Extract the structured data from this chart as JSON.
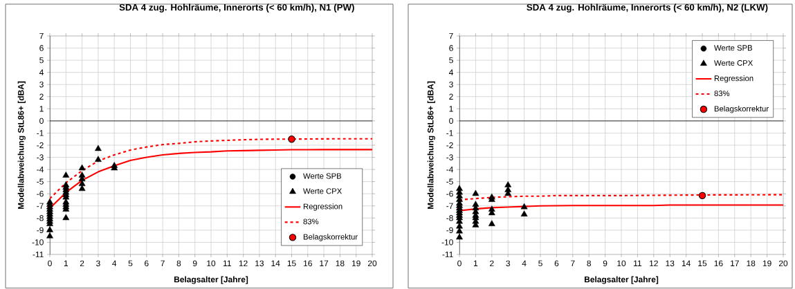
{
  "chart_data": [
    {
      "type": "scatter",
      "title": "SDA 4 zug. Hohlräume, Innerorts (< 60 km/h), N1 (PW)",
      "xlabel": "Belagsalter [Jahre]",
      "ylabel": "Modellabweichung StL86+ [dBA]",
      "xlim": [
        0,
        20
      ],
      "ylim": [
        -11,
        7
      ],
      "xticks": [
        0,
        1,
        2,
        3,
        4,
        5,
        6,
        7,
        8,
        9,
        10,
        11,
        12,
        13,
        14,
        15,
        16,
        17,
        18,
        19,
        20
      ],
      "yticks": [
        -11,
        -10,
        -9,
        -8,
        -7,
        -6,
        -5,
        -4,
        -3,
        -2,
        -1,
        0,
        1,
        2,
        3,
        4,
        5,
        6,
        7
      ],
      "grid": true,
      "legend": "bottom right",
      "series": [
        {
          "name": "Werte SPB",
          "marker": "circle",
          "color": "#000000"
        },
        {
          "name": "Werte CPX",
          "marker": "triangle",
          "color": "#000000",
          "x": [
            0,
            0,
            0,
            0,
            0,
            0,
            0,
            0,
            0,
            0,
            0,
            0,
            1,
            1,
            1,
            1,
            1,
            1,
            1,
            1,
            1,
            1,
            1,
            1,
            2,
            2,
            2,
            2,
            2,
            3,
            3,
            4,
            4
          ],
          "values": [
            -6.7,
            -6.9,
            -7.1,
            -7.3,
            -7.5,
            -7.7,
            -7.9,
            -8.1,
            -8.3,
            -8.5,
            -9.0,
            -9.5,
            -4.5,
            -5.3,
            -5.5,
            -5.7,
            -5.9,
            -6.1,
            -6.3,
            -6.7,
            -6.9,
            -7.1,
            -7.3,
            -8.0,
            -3.9,
            -4.5,
            -4.8,
            -5.2,
            -5.6,
            -2.3,
            -3.2,
            -3.7,
            -3.9
          ]
        },
        {
          "name": "Regression",
          "type": "line",
          "marker": "none",
          "line_style": "solid",
          "color": "#ff0000",
          "x": [
            0,
            1,
            2,
            3,
            4,
            5,
            6,
            7,
            8,
            9,
            10,
            11,
            12,
            13,
            14,
            15,
            16,
            17,
            18,
            19,
            20
          ],
          "values": [
            -7.2,
            -5.9,
            -4.9,
            -4.2,
            -3.7,
            -3.25,
            -3.0,
            -2.8,
            -2.68,
            -2.6,
            -2.55,
            -2.47,
            -2.45,
            -2.42,
            -2.4,
            -2.37,
            -2.37,
            -2.36,
            -2.36,
            -2.36,
            -2.36
          ]
        },
        {
          "name": "83%",
          "type": "line",
          "marker": "none",
          "line_style": "dashed",
          "color": "#ff0000",
          "x": [
            0,
            1,
            2,
            3,
            4,
            5,
            6,
            7,
            8,
            9,
            10,
            11,
            12,
            13,
            14,
            15,
            16,
            17,
            18,
            19,
            20
          ],
          "values": [
            -6.4,
            -5.1,
            -4.1,
            -3.3,
            -2.8,
            -2.4,
            -2.15,
            -1.95,
            -1.85,
            -1.72,
            -1.65,
            -1.6,
            -1.55,
            -1.52,
            -1.5,
            -1.5,
            -1.49,
            -1.48,
            -1.47,
            -1.47,
            -1.47
          ]
        },
        {
          "name": "Belagskorrektur",
          "type": "scatter",
          "marker": "circle",
          "color": "#ff0000",
          "x": [
            15
          ],
          "values": [
            -1.5
          ]
        }
      ]
    },
    {
      "type": "scatter",
      "title": "SDA 4 zug. Hohlräume, Innerorts (< 60 km/h), N2 (LKW)",
      "xlabel": "Belagsalter [Jahre]",
      "ylabel": "Modellabweichung StL86+ [dBA]",
      "xlim": [
        0,
        20
      ],
      "ylim": [
        -11,
        7
      ],
      "xticks": [
        0,
        1,
        2,
        3,
        4,
        5,
        6,
        7,
        8,
        9,
        10,
        11,
        12,
        13,
        14,
        15,
        16,
        17,
        18,
        19,
        20
      ],
      "yticks": [
        -11,
        -10,
        -9,
        -8,
        -7,
        -6,
        -5,
        -4,
        -3,
        -2,
        -1,
        0,
        1,
        2,
        3,
        4,
        5,
        6,
        7
      ],
      "grid": true,
      "legend": "top right",
      "series": [
        {
          "name": "Werte SPB",
          "marker": "circle",
          "color": "#000000"
        },
        {
          "name": "Werte CPX",
          "marker": "triangle",
          "color": "#000000",
          "x": [
            0,
            0,
            0,
            0,
            0,
            0,
            0,
            0,
            0,
            0,
            0,
            0,
            0,
            0,
            0,
            1,
            1,
            1,
            1,
            1,
            1,
            1,
            1,
            2,
            2,
            2,
            2,
            2,
            3,
            3,
            3,
            4,
            4
          ],
          "values": [
            -5.6,
            -5.9,
            -6.2,
            -6.5,
            -6.8,
            -7.0,
            -7.2,
            -7.4,
            -7.6,
            -7.8,
            -8.0,
            -8.3,
            -8.7,
            -9.1,
            -9.6,
            -6.0,
            -6.9,
            -7.2,
            -7.5,
            -7.8,
            -8.0,
            -8.3,
            -8.6,
            -6.3,
            -6.5,
            -7.3,
            -7.6,
            -8.5,
            -5.3,
            -5.7,
            -6.0,
            -7.1,
            -7.7
          ]
        },
        {
          "name": "Regression",
          "type": "line",
          "marker": "none",
          "line_style": "solid",
          "color": "#ff0000",
          "x": [
            0,
            1,
            2,
            3,
            4,
            5,
            7,
            12,
            13,
            20
          ],
          "values": [
            -7.4,
            -7.25,
            -7.15,
            -7.1,
            -7.05,
            -7.0,
            -6.97,
            -6.97,
            -6.93,
            -6.93
          ]
        },
        {
          "name": "83%",
          "type": "line",
          "marker": "none",
          "line_style": "dashed",
          "color": "#ff0000",
          "x": [
            0,
            1,
            2,
            3,
            4,
            5,
            6,
            10,
            15,
            20
          ],
          "values": [
            -6.5,
            -6.4,
            -6.3,
            -6.25,
            -6.2,
            -6.2,
            -6.15,
            -6.15,
            -6.1,
            -6.08
          ]
        },
        {
          "name": "Belagskorrektur",
          "type": "scatter",
          "marker": "circle",
          "color": "#ff0000",
          "x": [
            15
          ],
          "values": [
            -6.15
          ]
        }
      ]
    }
  ]
}
